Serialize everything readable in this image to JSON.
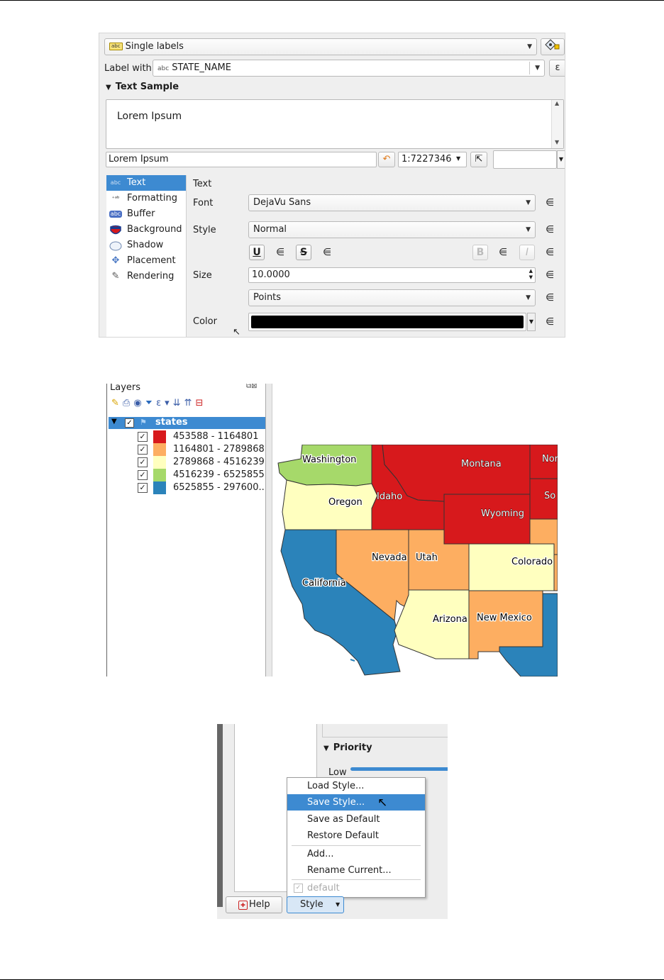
{
  "labeling": {
    "mode": "Single labels",
    "label_with_caption": "Label with",
    "label_field": "STATE_NAME",
    "expression_symbol": "ε",
    "text_sample_header": "Text Sample",
    "sample_preview": "Lorem Ipsum",
    "sample_input": "Lorem Ipsum",
    "scale": "1:7227346",
    "nav_items": [
      {
        "label": "Text",
        "icon": "abc-icon"
      },
      {
        "label": "Formatting",
        "icon": "formatting-icon"
      },
      {
        "label": "Buffer",
        "icon": "buffer-icon"
      },
      {
        "label": "Background",
        "icon": "background-icon"
      },
      {
        "label": "Shadow",
        "icon": "shadow-icon"
      },
      {
        "label": "Placement",
        "icon": "placement-icon"
      },
      {
        "label": "Rendering",
        "icon": "rendering-icon"
      }
    ],
    "section_title": "Text",
    "font_label": "Font",
    "font_value": "DejaVu Sans",
    "style_label": "Style",
    "style_value": "Normal",
    "underline_glyph": "U",
    "strike_glyph": "S",
    "bold_glyph": "B",
    "italic_glyph": "I",
    "size_label": "Size",
    "size_value": "10.0000",
    "unit_value": "Points",
    "color_label": "Color",
    "color_value": "#000000"
  },
  "layers": {
    "title": "Layers",
    "layer_name": "states",
    "legend": [
      {
        "range": "453588 - 1164801",
        "color": "#d7191c"
      },
      {
        "range": "1164801 - 2789868",
        "color": "#fdae61"
      },
      {
        "range": "2789868 - 4516239",
        "color": "#ffffbf"
      },
      {
        "range": "4516239 - 6525855",
        "color": "#a6d96a"
      },
      {
        "range": "6525855 - 297600...",
        "color": "#2b83ba"
      }
    ],
    "map_labels": {
      "washington": "Washington",
      "oregon": "Oregon",
      "idaho": "Idaho",
      "montana": "Montana",
      "wyoming": "Wyoming",
      "nevada": "Nevada",
      "utah": "Utah",
      "colorado": "Colorado",
      "california": "California",
      "arizona": "Arizona",
      "new_mexico": "New Mexico",
      "north_cut": "Nor",
      "south_cut": "So"
    }
  },
  "style_menu": {
    "priority_title": "Priority",
    "priority_low": "Low",
    "items": [
      "Load Style...",
      "Save Style...",
      "Save as Default",
      "Restore Default",
      "Add...",
      "Rename Current...",
      "default"
    ],
    "help_button": "Help",
    "style_button": "Style"
  }
}
